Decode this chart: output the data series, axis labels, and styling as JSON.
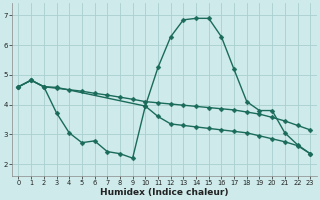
{
  "bg_color": "#ceeaea",
  "grid_color": "#aacfcf",
  "line_color": "#1a6b5a",
  "line_width": 1.0,
  "marker": "D",
  "marker_size": 2.5,
  "xlabel": "Humidex (Indice chaleur)",
  "ylim": [
    1.6,
    7.4
  ],
  "xlim": [
    -0.5,
    23.5
  ],
  "yticks": [
    2,
    3,
    4,
    5,
    6,
    7
  ],
  "xticks": [
    0,
    1,
    2,
    3,
    4,
    5,
    6,
    7,
    8,
    9,
    10,
    11,
    12,
    13,
    14,
    15,
    16,
    17,
    18,
    19,
    20,
    21,
    22,
    23
  ],
  "line1_x": [
    0,
    1,
    2,
    3,
    4,
    5,
    6,
    7,
    8,
    9,
    10,
    11,
    12,
    13,
    14,
    15,
    16,
    17,
    18,
    19,
    20,
    21,
    22,
    23
  ],
  "line1_y": [
    4.6,
    4.82,
    4.6,
    4.55,
    4.5,
    4.45,
    4.38,
    4.32,
    4.25,
    4.18,
    4.1,
    4.06,
    4.02,
    3.98,
    3.94,
    3.9,
    3.86,
    3.82,
    3.75,
    3.68,
    3.57,
    3.45,
    3.3,
    3.15
  ],
  "line2_x": [
    0,
    1,
    2,
    3,
    10,
    11,
    12,
    13,
    14,
    15,
    16,
    17,
    18,
    19,
    20,
    21,
    22,
    23
  ],
  "line2_y": [
    4.6,
    4.82,
    4.6,
    4.58,
    3.95,
    5.25,
    6.28,
    6.85,
    6.9,
    6.9,
    6.28,
    5.18,
    4.1,
    3.8,
    3.8,
    3.05,
    2.65,
    2.35
  ],
  "line3_x": [
    0,
    1,
    2,
    3,
    4,
    5,
    6,
    7,
    8,
    9,
    10,
    11,
    12,
    13,
    14,
    15,
    16,
    17,
    18,
    19,
    20,
    21,
    22,
    23
  ],
  "line3_y": [
    4.6,
    4.82,
    4.6,
    3.72,
    3.05,
    2.72,
    2.78,
    2.42,
    2.35,
    2.2,
    3.95,
    3.6,
    3.35,
    3.3,
    3.25,
    3.2,
    3.15,
    3.1,
    3.05,
    2.95,
    2.85,
    2.75,
    2.62,
    2.35
  ]
}
